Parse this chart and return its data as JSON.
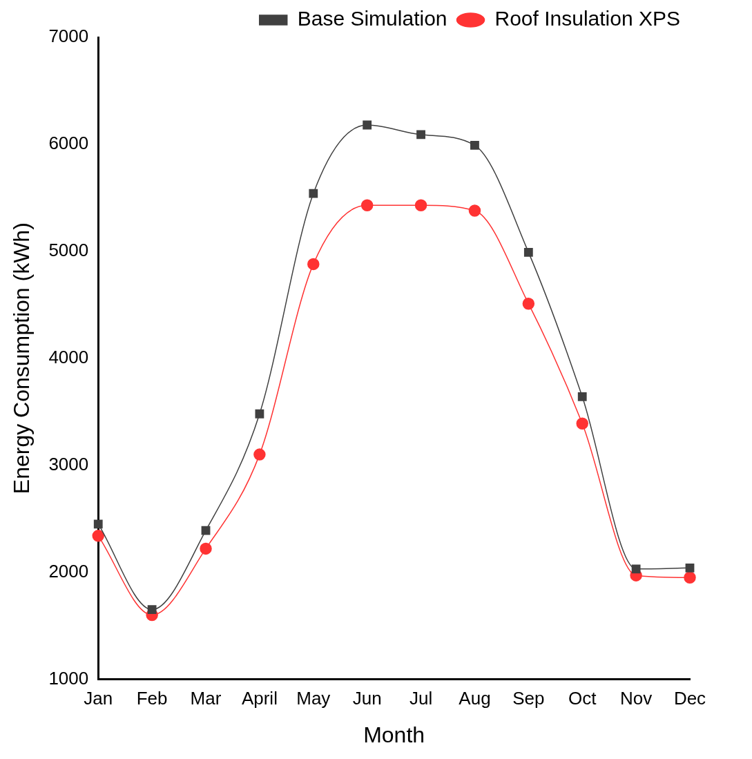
{
  "chart_data": {
    "type": "line",
    "xlabel": "Month",
    "ylabel": "Energy Consumption (kWh)",
    "categories": [
      "Jan",
      "Feb",
      "Mar",
      "April",
      "May",
      "Jun",
      "Jul",
      "Aug",
      "Sep",
      "Oct",
      "Nov",
      "Dec"
    ],
    "series": [
      {
        "name": "Base Simulation",
        "color": "#404040",
        "marker": "square",
        "values": [
          2450,
          1650,
          2390,
          3480,
          5540,
          6180,
          6090,
          5990,
          4990,
          3640,
          2030,
          2040
        ]
      },
      {
        "name": "Roof Insulation XPS",
        "color": "#ff3333",
        "marker": "circle",
        "values": [
          2340,
          1600,
          2220,
          3100,
          4880,
          5430,
          5430,
          5380,
          4510,
          3390,
          1970,
          1950
        ]
      }
    ],
    "ylim": [
      1000,
      7000
    ],
    "yticks": [
      1000,
      2000,
      3000,
      4000,
      5000,
      6000,
      7000
    ],
    "grid": false,
    "legend": "top right",
    "line_style": "solid"
  }
}
